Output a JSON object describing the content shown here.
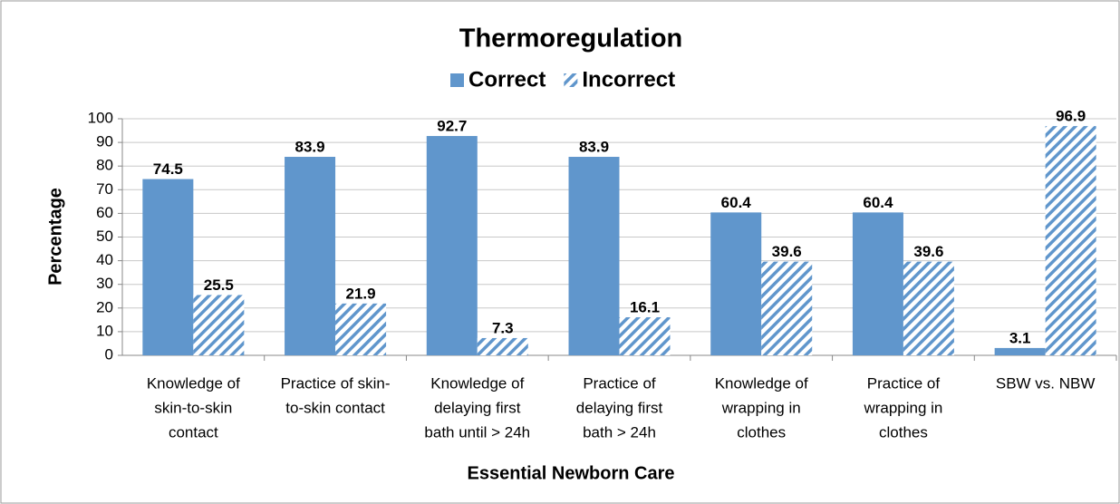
{
  "chart_data": {
    "type": "bar",
    "title": "Thermoregulation",
    "x_label": "Essential Newborn Care",
    "y_label": "Percentage",
    "categories": [
      [
        "Knowledge of",
        "skin-to-skin",
        "contact"
      ],
      [
        "Practice of skin-",
        "to-skin contact"
      ],
      [
        "Knowledge of",
        "delaying first",
        "bath until > 24h"
      ],
      [
        "Practice of",
        "delaying first",
        "bath > 24h"
      ],
      [
        "Knowledge of",
        "wrapping in",
        "clothes"
      ],
      [
        "Practice of",
        "wrapping in",
        "clothes"
      ],
      [
        "SBW vs. NBW"
      ]
    ],
    "series": [
      {
        "name": "Correct",
        "color": "#6096cc",
        "pattern": "solid",
        "values": [
          74.5,
          83.9,
          92.7,
          83.9,
          60.4,
          60.4,
          3.1
        ]
      },
      {
        "name": "Incorrect",
        "color": "#6096cc",
        "pattern": "hatch",
        "values": [
          25.5,
          21.9,
          7.3,
          16.1,
          39.6,
          39.6,
          96.9
        ]
      }
    ],
    "ylim": [
      0,
      100
    ],
    "yticks": [
      0,
      10,
      20,
      30,
      40,
      50,
      60,
      70,
      80,
      90,
      100
    ],
    "grid": true,
    "legend": "top"
  }
}
